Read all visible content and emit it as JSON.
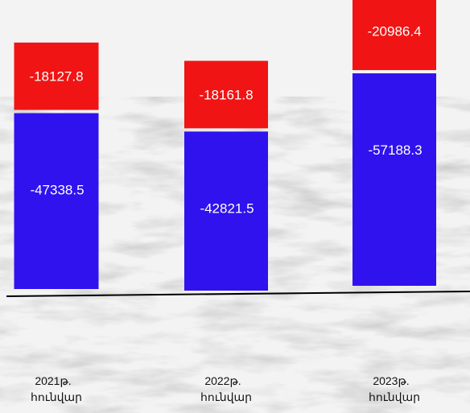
{
  "chart_data": {
    "type": "bar",
    "stacked": true,
    "orientation": "vertical",
    "categories": [
      [
        "2021թ.",
        "հունվար"
      ],
      [
        "2022թ.",
        "հունվար"
      ],
      [
        "2023թ.",
        "հունվար"
      ]
    ],
    "series": [
      {
        "values": [
          -47338.5,
          -42821.5,
          -57188.3
        ],
        "color": "#3012ee"
      },
      {
        "values": [
          -18127.8,
          -18161.8,
          -20986.4
        ],
        "color": "#f01414"
      }
    ],
    "data_labels": {
      "series_0": [
        "-47338.5",
        "-42821.5",
        "-57188.3"
      ],
      "series_1": [
        "-18127.8",
        "-18161.8",
        "-20986.4"
      ]
    },
    "ylim": [
      -80000,
      0
    ],
    "grid": false,
    "legend": "none",
    "title": "",
    "xlabel": "",
    "ylabel": ""
  }
}
